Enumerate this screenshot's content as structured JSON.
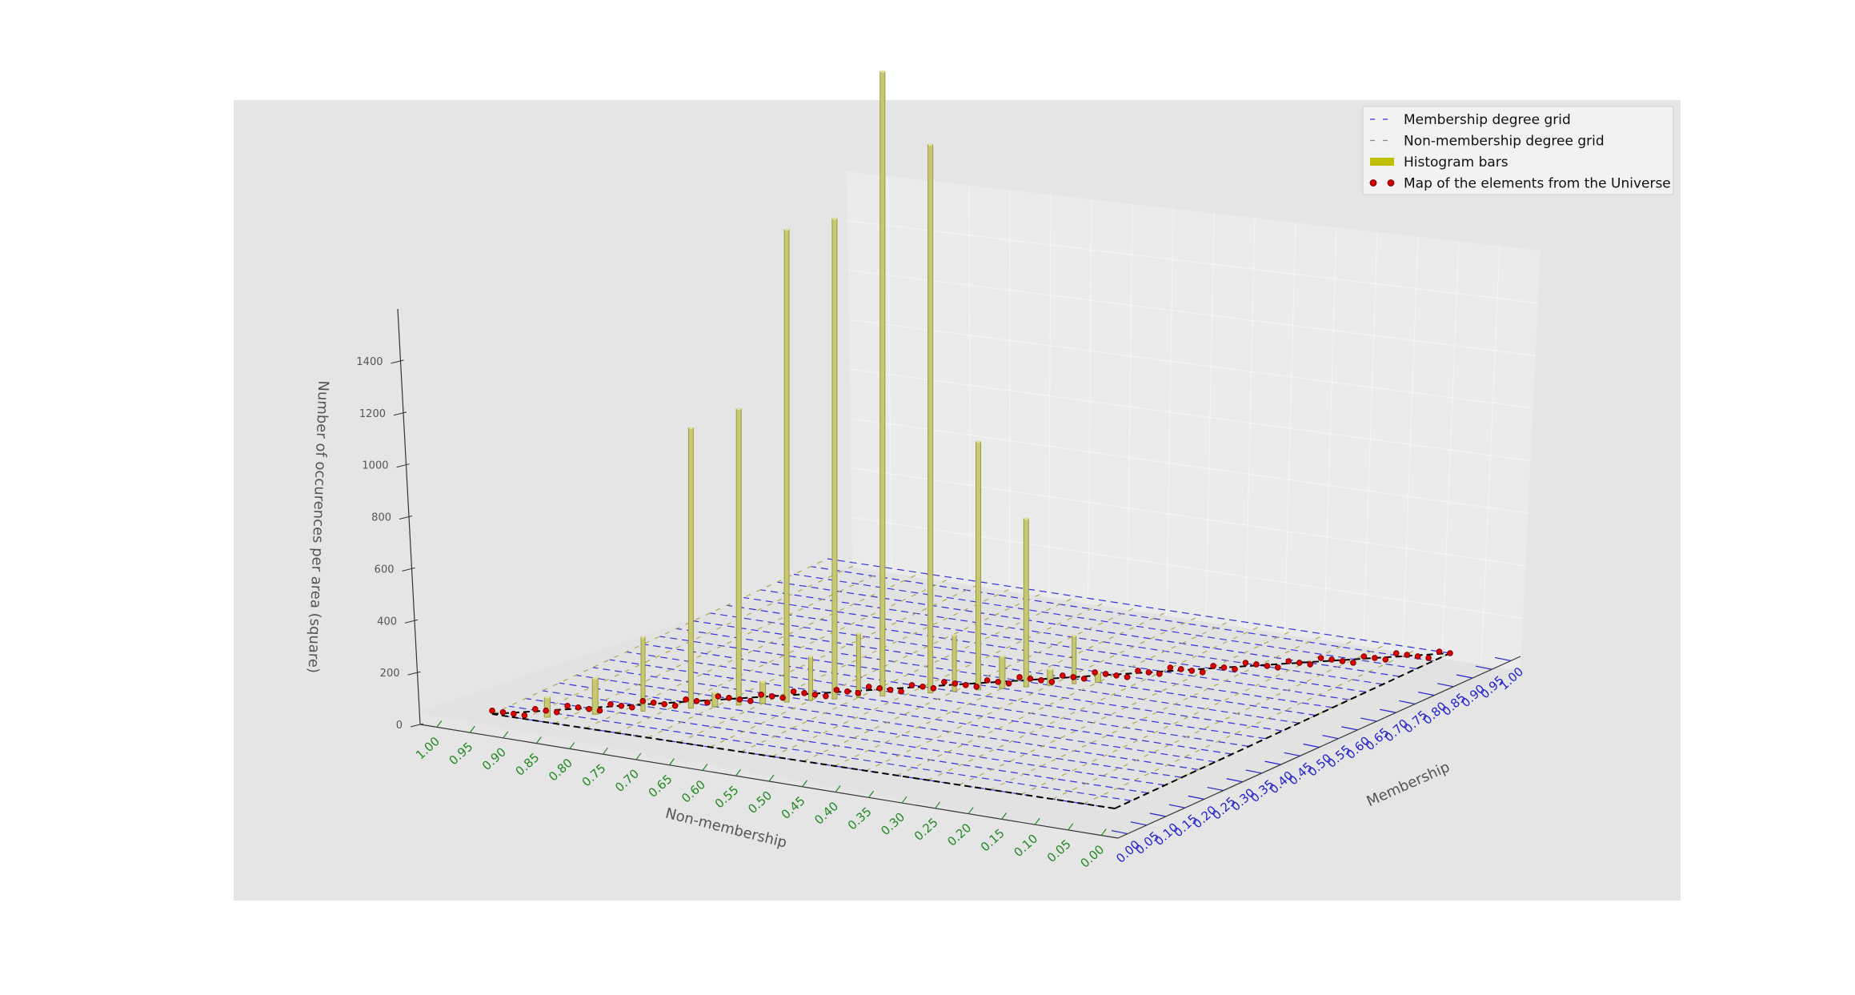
{
  "chart_data": {
    "type": "bar",
    "subtype": "3d-histogram",
    "title": "",
    "zlabel": "Number of occurences per area (square)",
    "xlabel": "Non-membership",
    "ylabel": "Membership",
    "z_ticks": [
      "0",
      "200",
      "400",
      "600",
      "800",
      "1000",
      "1200",
      "1400"
    ],
    "zlim": [
      0,
      1600
    ],
    "nonmembership_ticks": [
      "1.00",
      "0.95",
      "0.90",
      "0.85",
      "0.80",
      "0.75",
      "0.70",
      "0.65",
      "0.60",
      "0.55",
      "0.50",
      "0.45",
      "0.40",
      "0.35",
      "0.30",
      "0.25",
      "0.20",
      "0.15",
      "0.10",
      "0.05",
      "0.00"
    ],
    "membership_ticks": [
      "0.00",
      "0.05",
      "0.10",
      "0.15",
      "0.20",
      "0.25",
      "0.30",
      "0.35",
      "0.40",
      "0.45",
      "0.50",
      "0.55",
      "0.60",
      "0.65",
      "0.70",
      "0.75",
      "0.80",
      "0.85",
      "0.90",
      "0.95",
      "1.00"
    ],
    "legend": {
      "placement": "top-right",
      "entries": [
        {
          "label": "Membership degree grid",
          "color": "#3333dd",
          "style": "dashed"
        },
        {
          "label": "Non-membership degree grid",
          "color": "#888888",
          "style": "dashed"
        },
        {
          "label": "Histogram bars",
          "color": "#bfbf00",
          "style": "bar"
        },
        {
          "label": "Map of the elements from the Universe",
          "color": "#cc0000",
          "style": "points"
        }
      ]
    },
    "bars": [
      {
        "nonmembership": 0.925,
        "membership": 0.025,
        "value": 50
      },
      {
        "nonmembership": 0.875,
        "membership": 0.075,
        "value": 90
      },
      {
        "nonmembership": 0.825,
        "membership": 0.125,
        "value": 185
      },
      {
        "nonmembership": 0.775,
        "membership": 0.175,
        "value": 700
      },
      {
        "nonmembership": 0.725,
        "membership": 0.225,
        "value": 740
      },
      {
        "nonmembership": 0.675,
        "membership": 0.275,
        "value": 1180
      },
      {
        "nonmembership": 0.625,
        "membership": 0.325,
        "value": 1200
      },
      {
        "nonmembership": 0.575,
        "membership": 0.375,
        "value": 1560
      },
      {
        "nonmembership": 0.525,
        "membership": 0.425,
        "value": 1370
      },
      {
        "nonmembership": 0.475,
        "membership": 0.475,
        "value": 620
      },
      {
        "nonmembership": 0.425,
        "membership": 0.525,
        "value": 420
      },
      {
        "nonmembership": 0.375,
        "membership": 0.575,
        "value": 120
      },
      {
        "nonmembership": 0.925,
        "membership": 0.025,
        "value": 20
      },
      {
        "nonmembership": 0.75,
        "membership": 0.2,
        "value": 35
      },
      {
        "nonmembership": 0.7,
        "membership": 0.25,
        "value": 55
      },
      {
        "nonmembership": 0.65,
        "membership": 0.3,
        "value": 110
      },
      {
        "nonmembership": 0.6,
        "membership": 0.35,
        "value": 160
      },
      {
        "nonmembership": 0.5,
        "membership": 0.45,
        "value": 140
      },
      {
        "nonmembership": 0.45,
        "membership": 0.5,
        "value": 80
      },
      {
        "nonmembership": 0.4,
        "membership": 0.55,
        "value": 40
      },
      {
        "nonmembership": 0.35,
        "membership": 0.6,
        "value": 25
      }
    ],
    "points_line": {
      "membership_start": 0.0,
      "membership_end": 1.0,
      "count": 90
    }
  }
}
